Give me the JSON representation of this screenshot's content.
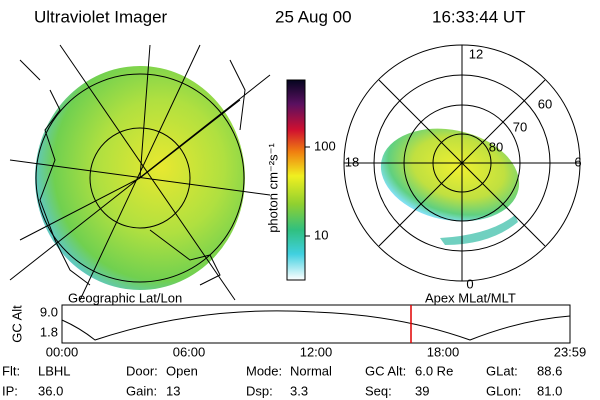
{
  "header": {
    "instrument": "Ultraviolet Imager",
    "date": "25 Aug 00",
    "time": "16:33:44 UT"
  },
  "colorbar": {
    "label": "photon cm⁻²s⁻¹",
    "ticks": [
      "100",
      "10"
    ]
  },
  "polar": {
    "labels": [
      "12",
      "60",
      "70",
      "80",
      "18",
      "6",
      "0"
    ]
  },
  "map_labels": {
    "left": "Geographic Lat/Lon",
    "right": "Apex MLat/MLT"
  },
  "altitude_plot": {
    "y_label": "GC Alt",
    "y_ticks": [
      "9.0",
      "1.8"
    ],
    "x_ticks": [
      "00:00",
      "06:00",
      "12:00",
      "18:00",
      "23:59"
    ]
  },
  "footer": {
    "rows": [
      [
        [
          "Flt:",
          "LBHL"
        ],
        [
          "Door:",
          "Open"
        ],
        [
          "Mode:",
          "Normal"
        ],
        [
          "GC Alt:",
          "6.0 Re"
        ],
        [
          "GLat:",
          "88.6"
        ]
      ],
      [
        [
          "IP:",
          "36.0"
        ],
        [
          "Gain:",
          "13"
        ],
        [
          "Dsp:",
          "3.3"
        ],
        [
          "Seq:",
          "39"
        ],
        [
          "GLon:",
          "81.0"
        ]
      ]
    ]
  }
}
